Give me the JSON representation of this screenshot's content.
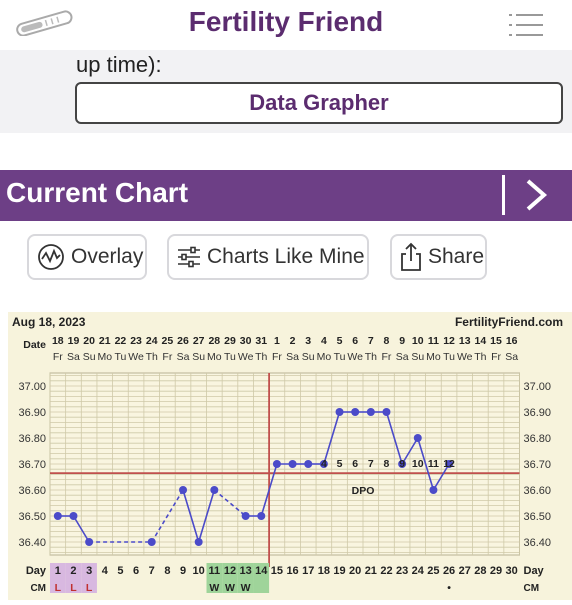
{
  "app": {
    "title": "Fertility Friend"
  },
  "top_section": {
    "partial_text": "up time):",
    "grapher_button": "Data Grapher"
  },
  "current_chart": {
    "heading": "Current Chart"
  },
  "toolbar": {
    "overlay": "Overlay",
    "charts_like_mine": "Charts Like Mine",
    "share": "Share"
  },
  "colors": {
    "brand_purple": "#6d3f86",
    "title_purple": "#5b2c6f",
    "chart_bg": "#f7f3dc",
    "grid": "#cfc9a8",
    "temp_line": "#4b4bc9",
    "coverline": "#c0504d"
  },
  "chart_data": {
    "type": "line",
    "header_date": "Aug 18, 2023",
    "brand": "FertilityFriend.com",
    "date_label": "Date",
    "dates": [
      "18",
      "19",
      "20",
      "21",
      "22",
      "23",
      "24",
      "25",
      "26",
      "27",
      "28",
      "29",
      "30",
      "31",
      "1",
      "2",
      "3",
      "4",
      "5",
      "6",
      "7",
      "8",
      "9",
      "10",
      "11",
      "12",
      "13",
      "14",
      "15",
      "16"
    ],
    "weekdays": [
      "Fr",
      "Sa",
      "Su",
      "Mo",
      "Tu",
      "We",
      "Th",
      "Fr",
      "Sa",
      "Su",
      "Mo",
      "Tu",
      "We",
      "Th",
      "Fr",
      "Sa",
      "Su",
      "Mo",
      "Tu",
      "We",
      "Th",
      "Fr",
      "Sa",
      "Su",
      "Mo",
      "Tu",
      "We",
      "Th",
      "Fr",
      "Sa"
    ],
    "day_label": "Day",
    "days": [
      1,
      2,
      3,
      4,
      5,
      6,
      7,
      8,
      9,
      10,
      11,
      12,
      13,
      14,
      15,
      16,
      17,
      18,
      19,
      20,
      21,
      22,
      23,
      24,
      25,
      26,
      27,
      28,
      29,
      30
    ],
    "ylim": [
      36.35,
      37.05
    ],
    "yticks": [
      "37.00",
      "36.90",
      "36.80",
      "36.70",
      "36.60",
      "36.50",
      "36.40"
    ],
    "temps": [
      {
        "day": 1,
        "temp": 36.5
      },
      {
        "day": 2,
        "temp": 36.5
      },
      {
        "day": 3,
        "temp": 36.4
      },
      {
        "day": 7,
        "temp": 36.4
      },
      {
        "day": 9,
        "temp": 36.6
      },
      {
        "day": 10,
        "temp": 36.4
      },
      {
        "day": 11,
        "temp": 36.6
      },
      {
        "day": 13,
        "temp": 36.5
      },
      {
        "day": 14,
        "temp": 36.5
      },
      {
        "day": 15,
        "temp": 36.7
      },
      {
        "day": 16,
        "temp": 36.7
      },
      {
        "day": 17,
        "temp": 36.7
      },
      {
        "day": 18,
        "temp": 36.7
      },
      {
        "day": 19,
        "temp": 36.9
      },
      {
        "day": 20,
        "temp": 36.9
      },
      {
        "day": 21,
        "temp": 36.9
      },
      {
        "day": 22,
        "temp": 36.9
      },
      {
        "day": 23,
        "temp": 36.7
      },
      {
        "day": 24,
        "temp": 36.8
      },
      {
        "day": 25,
        "temp": 36.6
      },
      {
        "day": 26,
        "temp": 36.7
      }
    ],
    "dashed_after_days": [
      3,
      7,
      11
    ],
    "coverline": 36.665,
    "ovulation_day": 14,
    "dpo_label": "DPO",
    "dpo_numbers": [
      {
        "day": 18,
        "n": "4"
      },
      {
        "day": 19,
        "n": "5"
      },
      {
        "day": 20,
        "n": "6"
      },
      {
        "day": 21,
        "n": "7"
      },
      {
        "day": 22,
        "n": "8"
      },
      {
        "day": 23,
        "n": "9"
      },
      {
        "day": 24,
        "n": "10"
      },
      {
        "day": 25,
        "n": "11"
      },
      {
        "day": 26,
        "n": "12"
      }
    ],
    "cm_label": "CM",
    "cm": [
      {
        "day": 1,
        "v": "L"
      },
      {
        "day": 2,
        "v": "L"
      },
      {
        "day": 3,
        "v": "L"
      },
      {
        "day": 11,
        "v": "W"
      },
      {
        "day": 12,
        "v": "W"
      },
      {
        "day": 13,
        "v": "W"
      },
      {
        "day": 26,
        "v": "•"
      }
    ]
  }
}
